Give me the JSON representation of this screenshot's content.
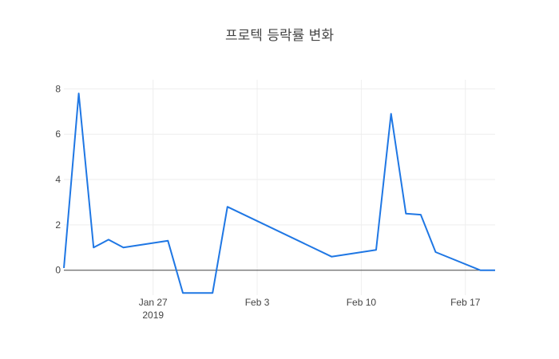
{
  "chart_data": {
    "type": "line",
    "title": "프로텍 등락률 변화",
    "xlabel": "",
    "ylabel": "",
    "ylim": [
      -1.1,
      8.4
    ],
    "xlim": [
      "2019-01-21",
      "2019-02-19"
    ],
    "grid": true,
    "legend": "none",
    "x_ticks": [
      {
        "date": "2019-01-27",
        "label": "Jan 27",
        "sublabel": "2019"
      },
      {
        "date": "2019-02-03",
        "label": "Feb 3",
        "sublabel": ""
      },
      {
        "date": "2019-02-10",
        "label": "Feb 10",
        "sublabel": ""
      },
      {
        "date": "2019-02-17",
        "label": "Feb 17",
        "sublabel": ""
      }
    ],
    "y_ticks": [
      {
        "value": 0,
        "label": "0"
      },
      {
        "value": 2,
        "label": "2"
      },
      {
        "value": 4,
        "label": "4"
      },
      {
        "value": 6,
        "label": "6"
      },
      {
        "value": 8,
        "label": "8"
      }
    ],
    "series": [
      {
        "color": "#1f77e4",
        "points": [
          {
            "x": "2019-01-21",
            "y": 0.1
          },
          {
            "x": "2019-01-22",
            "y": 7.8
          },
          {
            "x": "2019-01-23",
            "y": 1.0
          },
          {
            "x": "2019-01-24",
            "y": 1.35
          },
          {
            "x": "2019-01-25",
            "y": 1.0
          },
          {
            "x": "2019-01-28",
            "y": 1.3
          },
          {
            "x": "2019-01-29",
            "y": -1.0
          },
          {
            "x": "2019-01-30",
            "y": -1.0
          },
          {
            "x": "2019-01-31",
            "y": -1.0
          },
          {
            "x": "2019-02-01",
            "y": 2.8
          },
          {
            "x": "2019-02-08",
            "y": 0.6
          },
          {
            "x": "2019-02-11",
            "y": 0.9
          },
          {
            "x": "2019-02-12",
            "y": 6.9
          },
          {
            "x": "2019-02-13",
            "y": 2.5
          },
          {
            "x": "2019-02-14",
            "y": 2.45
          },
          {
            "x": "2019-02-15",
            "y": 0.8
          },
          {
            "x": "2019-02-18",
            "y": 0.0
          },
          {
            "x": "2019-02-19",
            "y": 0.0
          }
        ]
      }
    ]
  }
}
